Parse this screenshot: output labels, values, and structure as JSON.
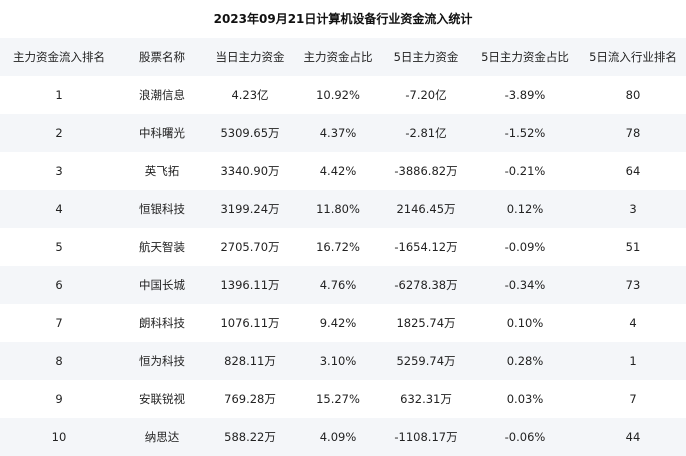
{
  "title": "2023年09月21日计算机设备行业资金流入统计",
  "headers": [
    "主力资金流入排名",
    "股票名称",
    "当日主力资金",
    "主力资金占比",
    "5日主力资金",
    "5日主力资金占比",
    "5日流入行业排名"
  ],
  "rows": [
    [
      "1",
      "浪潮信息",
      "4.23亿",
      "10.92%",
      "-7.20亿",
      "-3.89%",
      "80"
    ],
    [
      "2",
      "中科曙光",
      "5309.65万",
      "4.37%",
      "-2.81亿",
      "-1.52%",
      "78"
    ],
    [
      "3",
      "英飞拓",
      "3340.90万",
      "4.42%",
      "-3886.82万",
      "-0.21%",
      "64"
    ],
    [
      "4",
      "恒银科技",
      "3199.24万",
      "11.80%",
      "2146.45万",
      "0.12%",
      "3"
    ],
    [
      "5",
      "航天智装",
      "2705.70万",
      "16.72%",
      "-1654.12万",
      "-0.09%",
      "51"
    ],
    [
      "6",
      "中国长城",
      "1396.11万",
      "4.76%",
      "-6278.38万",
      "-0.34%",
      "73"
    ],
    [
      "7",
      "朗科科技",
      "1076.11万",
      "9.42%",
      "1825.74万",
      "0.10%",
      "4"
    ],
    [
      "8",
      "恒为科技",
      "828.11万",
      "3.10%",
      "5259.74万",
      "0.28%",
      "1"
    ],
    [
      "9",
      "安联锐视",
      "769.28万",
      "15.27%",
      "632.31万",
      "0.03%",
      "7"
    ],
    [
      "10",
      "纳思达",
      "588.22万",
      "4.09%",
      "-1108.17万",
      "-0.06%",
      "44"
    ]
  ]
}
